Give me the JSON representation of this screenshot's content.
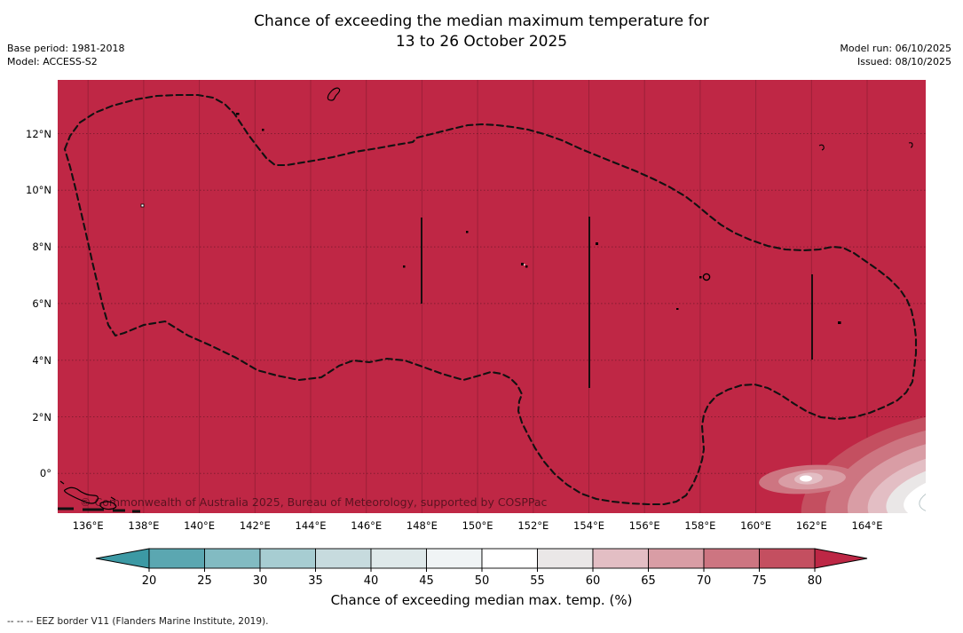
{
  "title": {
    "line1": "Chance of exceeding the median maximum temperature for",
    "line2": "13 to 26 October 2025"
  },
  "meta_left": {
    "base_period": "Base period: 1981-2018",
    "model": "Model: ACCESS-S2"
  },
  "meta_right": {
    "model_run": "Model run: 06/10/2025",
    "issued": "Issued: 08/10/2025"
  },
  "map": {
    "watermark": "© Commonwealth of Australia 2025, Bureau of Meteorology, supported by COSPPac",
    "lat_ticks": [
      "12°N",
      "10°N",
      "8°N",
      "6°N",
      "4°N",
      "2°N",
      "0°"
    ],
    "lon_ticks": [
      "136°E",
      "138°E",
      "140°E",
      "142°E",
      "144°E",
      "146°E",
      "148°E",
      "150°E",
      "152°E",
      "154°E",
      "156°E",
      "158°E",
      "160°E",
      "162°E",
      "164°E"
    ],
    "base_fill_color": "#bf2745",
    "eez_border_color": "#111111"
  },
  "colorbar": {
    "ticks": [
      "20",
      "25",
      "30",
      "35",
      "40",
      "45",
      "50",
      "55",
      "60",
      "65",
      "70",
      "75",
      "80"
    ],
    "segment_colors": [
      "#5ba7b1",
      "#82bbc2",
      "#a7cdd2",
      "#c7dbde",
      "#dfe9ea",
      "#f0f4f5",
      "#ffffff",
      "#eae7e7",
      "#e3bec4",
      "#d99da5",
      "#cd7581",
      "#c44f60"
    ],
    "under_arrow_color": "#3c99a4",
    "over_arrow_color": "#bd2745",
    "label": "Chance of exceeding median max. temp. (%)"
  },
  "footer": {
    "eez_note": "--  --  -- EEZ border V11 (Flanders Marine Institute, 2019)."
  },
  "chart_data": {
    "type": "heatmap",
    "title": "Chance of exceeding the median maximum temperature for 13 to 26 October 2025",
    "base_period": "1981-2018",
    "model": "ACCESS-S2",
    "model_run": "06/10/2025",
    "issued": "08/10/2025",
    "colorbar_label": "Chance of exceeding median max. temp. (%)",
    "colorbar_ticks": [
      20,
      25,
      30,
      35,
      40,
      45,
      50,
      55,
      60,
      65,
      70,
      75,
      80
    ],
    "colorbar_extends": "both",
    "lon_range_deg_e": [
      134.9,
      166.1
    ],
    "lat_range_deg_n": [
      -1.5,
      13.9
    ],
    "field_summary": "Nearly the entire mapped region (Federated States of Micronesia EEZ and surrounds) is shaded above 80% chance of exceeding the median maximum temperature; a small pocket of lower values (down to roughly 45-55%) appears in the far southeast corner near 164-166E, 0-2N.",
    "overlays": [
      "dashed EEZ border (FSM)",
      "island outlines (Guam, Yap, Chuuk, Pohnpei, Kosrae)",
      "2-degree lat/lon graticule"
    ]
  }
}
